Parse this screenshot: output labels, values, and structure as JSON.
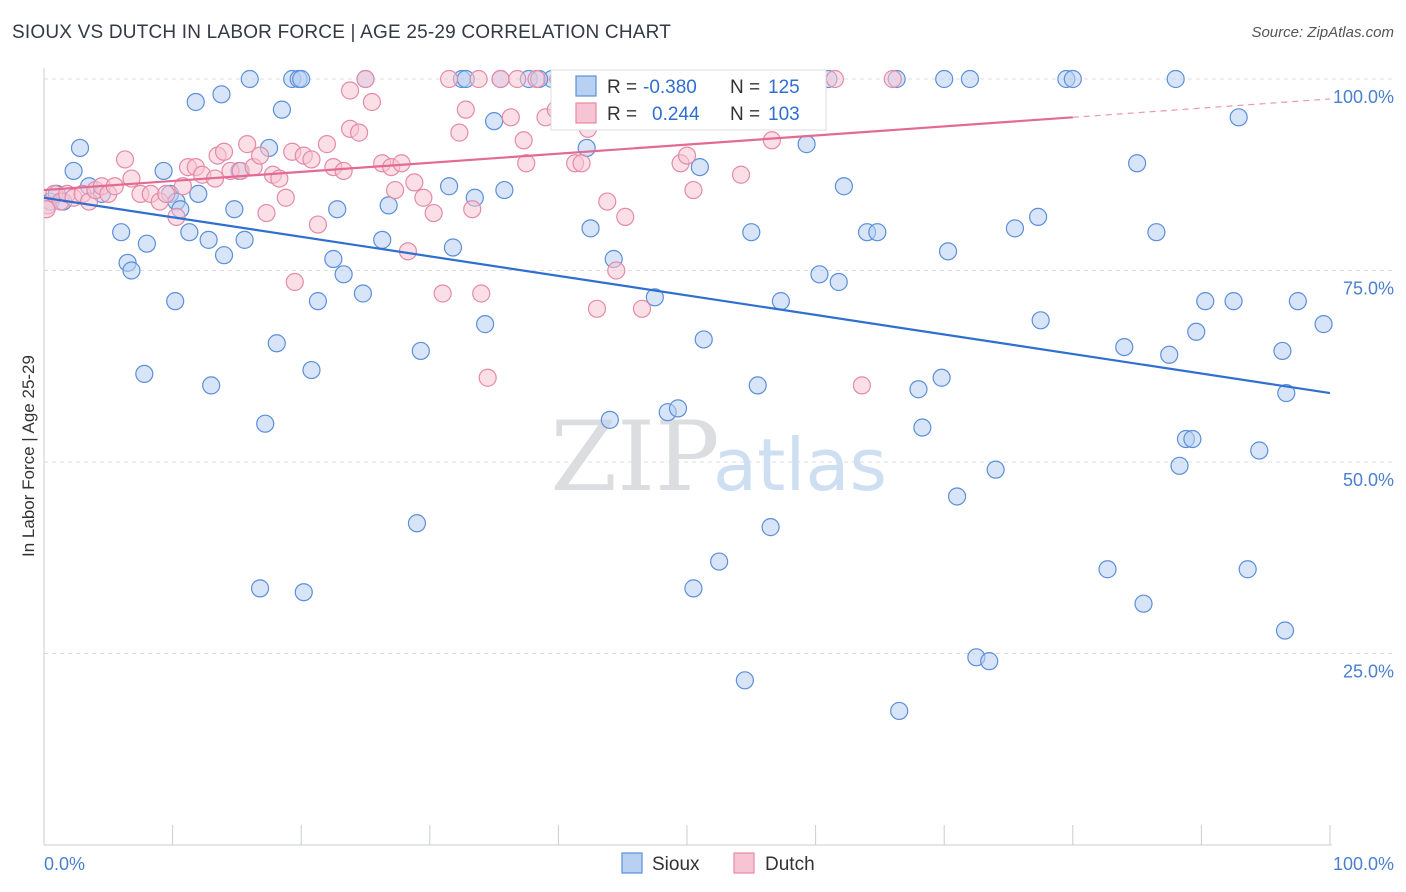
{
  "header": {
    "title": "SIOUX VS DUTCH IN LABOR FORCE | AGE 25-29 CORRELATION CHART",
    "source": "Source: ZipAtlas.com"
  },
  "watermark": {
    "zip": "ZIP",
    "atlas": "atlas"
  },
  "colors": {
    "sioux_fill": "#b8d0f2",
    "sioux_stroke": "#5b8fd8",
    "sioux_line": "#2f6fd0",
    "dutch_fill": "#f7c4d3",
    "dutch_stroke": "#e58aa8",
    "dutch_line": "#e36a93",
    "grid": "#d9dde3",
    "tick_label": "#4a7fd0"
  },
  "legend": {
    "rows": [
      {
        "r_label": "R =",
        "r_value": "-0.380",
        "n_label": "N =",
        "n_value": "125"
      },
      {
        "r_label": "R =",
        "r_value": "0.244",
        "n_label": "N =",
        "n_value": "103"
      }
    ],
    "bottom": [
      "Sioux",
      "Dutch"
    ]
  },
  "chart_data": {
    "type": "scatter",
    "title": "SIOUX VS DUTCH IN LABOR FORCE | AGE 25-29 CORRELATION CHART",
    "xlabel": "",
    "ylabel": "In Labor Force | Age 25-29",
    "xlim": [
      0,
      100
    ],
    "ylim": [
      0,
      102
    ],
    "x_tick_labels": [
      "0.0%",
      "100.0%"
    ],
    "y_ticks": [
      25,
      50,
      75,
      100
    ],
    "y_tick_labels": [
      "25.0%",
      "50.0%",
      "75.0%",
      "100.0%"
    ],
    "series": [
      {
        "name": "Sioux",
        "r": -0.38,
        "n": 125,
        "trend": {
          "x0": 0,
          "y0": 84.5,
          "x1": 100,
          "y1": 59.0
        },
        "points": [
          [
            0.5,
            84
          ],
          [
            1,
            85
          ],
          [
            1.5,
            84
          ],
          [
            2.3,
            88
          ],
          [
            2.8,
            91
          ],
          [
            3.5,
            86
          ],
          [
            4.5,
            85
          ],
          [
            6,
            80
          ],
          [
            6.5,
            76
          ],
          [
            6.8,
            75
          ],
          [
            7.8,
            61.5
          ],
          [
            8,
            78.5
          ],
          [
            9.3,
            88
          ],
          [
            9.8,
            85
          ],
          [
            10.3,
            84
          ],
          [
            10.6,
            83
          ],
          [
            10.2,
            71
          ],
          [
            11.3,
            80
          ],
          [
            11.8,
            97
          ],
          [
            12,
            85
          ],
          [
            12.8,
            79
          ],
          [
            13,
            60
          ],
          [
            13.8,
            98
          ],
          [
            14,
            77
          ],
          [
            14.8,
            83
          ],
          [
            15.2,
            88
          ],
          [
            15.6,
            79
          ],
          [
            16.8,
            33.5
          ],
          [
            17.2,
            55
          ],
          [
            17.5,
            91
          ],
          [
            18.1,
            65.5
          ],
          [
            18.5,
            96
          ],
          [
            19.3,
            100
          ],
          [
            19.8,
            100
          ],
          [
            20.2,
            33
          ],
          [
            20.8,
            62
          ],
          [
            21.3,
            71
          ],
          [
            22.5,
            76.5
          ],
          [
            22.8,
            83
          ],
          [
            23.3,
            74.5
          ],
          [
            24.8,
            72
          ],
          [
            26.3,
            79
          ],
          [
            26.8,
            83.5
          ],
          [
            29,
            42
          ],
          [
            29.3,
            64.5
          ],
          [
            31.5,
            86
          ],
          [
            31.8,
            78
          ],
          [
            32.5,
            100
          ],
          [
            33.5,
            84.5
          ],
          [
            34.3,
            68
          ],
          [
            35,
            94.5
          ],
          [
            35.8,
            85.5
          ],
          [
            32.8,
            100
          ],
          [
            35.5,
            100
          ],
          [
            37.7,
            100
          ],
          [
            39.5,
            100
          ],
          [
            41,
            100
          ],
          [
            42.2,
            91
          ],
          [
            42.5,
            80.5
          ],
          [
            44,
            55.5
          ],
          [
            44.3,
            76.5
          ],
          [
            47.5,
            71.5
          ],
          [
            48.5,
            56.5
          ],
          [
            49.3,
            57
          ],
          [
            51,
            88.5
          ],
          [
            51.3,
            66
          ],
          [
            52.5,
            37
          ],
          [
            50.5,
            33.5
          ],
          [
            54.5,
            21.5
          ],
          [
            55,
            80
          ],
          [
            55.5,
            60
          ],
          [
            56.5,
            41.5
          ],
          [
            57.3,
            71
          ],
          [
            59.3,
            91.5
          ],
          [
            60.3,
            74.5
          ],
          [
            61.8,
            73.5
          ],
          [
            62.2,
            86
          ],
          [
            64,
            80
          ],
          [
            64.8,
            80
          ],
          [
            66.5,
            17.5
          ],
          [
            66.3,
            100
          ],
          [
            68,
            59.5
          ],
          [
            68.3,
            54.5
          ],
          [
            69.8,
            61
          ],
          [
            70.3,
            77.5
          ],
          [
            71,
            45.5
          ],
          [
            72.5,
            24.5
          ],
          [
            73.5,
            24
          ],
          [
            74,
            49
          ],
          [
            75.5,
            80.5
          ],
          [
            77.3,
            82
          ],
          [
            77.5,
            68.5
          ],
          [
            79.5,
            100
          ],
          [
            82.7,
            36
          ],
          [
            84,
            65
          ],
          [
            85,
            89
          ],
          [
            85.5,
            31.5
          ],
          [
            86.5,
            80
          ],
          [
            87.5,
            64
          ],
          [
            88.3,
            49.5
          ],
          [
            88.8,
            53
          ],
          [
            89.3,
            53
          ],
          [
            89.6,
            67
          ],
          [
            90.3,
            71
          ],
          [
            92.5,
            71
          ],
          [
            92.9,
            95
          ],
          [
            93.6,
            36
          ],
          [
            94.5,
            51.5
          ],
          [
            96.5,
            28
          ],
          [
            96.3,
            64.5
          ],
          [
            96.6,
            59
          ],
          [
            97.5,
            71
          ],
          [
            99.5,
            68
          ],
          [
            72,
            100
          ],
          [
            61,
            100
          ],
          [
            58,
            100
          ],
          [
            47,
            100
          ],
          [
            38.5,
            100
          ],
          [
            25,
            100
          ],
          [
            20,
            100
          ],
          [
            16,
            100
          ],
          [
            40,
            100
          ],
          [
            70,
            100
          ],
          [
            80,
            100
          ],
          [
            88,
            100
          ]
        ]
      },
      {
        "name": "Dutch",
        "r": 0.244,
        "n": 103,
        "trend": {
          "x0": 0,
          "y0": 85.5,
          "x1": 80,
          "y1": 95.0,
          "dash_to_x": 100,
          "dash_to_y": 97.4
        },
        "points": [
          [
            0.3,
            83.5
          ],
          [
            0.8,
            85
          ],
          [
            1.3,
            84
          ],
          [
            1.8,
            85
          ],
          [
            2.3,
            84.5
          ],
          [
            3,
            85
          ],
          [
            3.5,
            84
          ],
          [
            4,
            85.5
          ],
          [
            4.5,
            86
          ],
          [
            5,
            85
          ],
          [
            5.5,
            86
          ],
          [
            6.3,
            89.5
          ],
          [
            6.8,
            87
          ],
          [
            7.5,
            85
          ],
          [
            8.3,
            85
          ],
          [
            9,
            84
          ],
          [
            9.5,
            85
          ],
          [
            10.3,
            82
          ],
          [
            10.8,
            86
          ],
          [
            11.2,
            88.5
          ],
          [
            11.8,
            88.5
          ],
          [
            12.3,
            87.5
          ],
          [
            13.3,
            87
          ],
          [
            13.5,
            90
          ],
          [
            14,
            90.5
          ],
          [
            14.5,
            88
          ],
          [
            15.3,
            88
          ],
          [
            15.8,
            91.5
          ],
          [
            16.3,
            88.5
          ],
          [
            16.8,
            90
          ],
          [
            17.3,
            82.5
          ],
          [
            17.8,
            87.5
          ],
          [
            18.3,
            87
          ],
          [
            18.8,
            84.5
          ],
          [
            19.3,
            90.5
          ],
          [
            19.5,
            73.5
          ],
          [
            20.2,
            90
          ],
          [
            20.8,
            89.5
          ],
          [
            21.3,
            81
          ],
          [
            22,
            91.5
          ],
          [
            22.5,
            88.5
          ],
          [
            23.3,
            88
          ],
          [
            23.8,
            93.5
          ],
          [
            24.5,
            93
          ],
          [
            25,
            100
          ],
          [
            23.8,
            98.5
          ],
          [
            25.5,
            97
          ],
          [
            26.3,
            89
          ],
          [
            27,
            88.5
          ],
          [
            27.3,
            85.5
          ],
          [
            27.8,
            89
          ],
          [
            28.3,
            77.5
          ],
          [
            28.8,
            86.5
          ],
          [
            29.5,
            84.5
          ],
          [
            30.3,
            82.5
          ],
          [
            31,
            72
          ],
          [
            31.5,
            100
          ],
          [
            32.3,
            93
          ],
          [
            32.8,
            96
          ],
          [
            33.3,
            83
          ],
          [
            33.8,
            100
          ],
          [
            34,
            72
          ],
          [
            34.5,
            61
          ],
          [
            35.5,
            100
          ],
          [
            36.3,
            95
          ],
          [
            36.8,
            100
          ],
          [
            37.5,
            89
          ],
          [
            37.3,
            92
          ],
          [
            38.3,
            100
          ],
          [
            39,
            95
          ],
          [
            39.8,
            96
          ],
          [
            40.5,
            100
          ],
          [
            41.3,
            89
          ],
          [
            41.8,
            89
          ],
          [
            42.3,
            93.5
          ],
          [
            43,
            70
          ],
          [
            43.8,
            84
          ],
          [
            44.5,
            75
          ],
          [
            45.2,
            82
          ],
          [
            46.5,
            70
          ],
          [
            46.8,
            100
          ],
          [
            47.5,
            100
          ],
          [
            48,
            100
          ],
          [
            48.5,
            100
          ],
          [
            49.5,
            89
          ],
          [
            50,
            90
          ],
          [
            50.5,
            85.5
          ],
          [
            51,
            100
          ],
          [
            53,
            100
          ],
          [
            54.2,
            87.5
          ],
          [
            55.5,
            100
          ],
          [
            56,
            100
          ],
          [
            56.6,
            92
          ],
          [
            61.5,
            100
          ],
          [
            63.6,
            60
          ],
          [
            44,
            100
          ],
          [
            40,
            100
          ],
          [
            45,
            100
          ],
          [
            58,
            100
          ],
          [
            66,
            100
          ],
          [
            57,
            100
          ],
          [
            52,
            100
          ],
          [
            43.5,
            100
          ],
          [
            0.2,
            83
          ]
        ]
      }
    ]
  }
}
